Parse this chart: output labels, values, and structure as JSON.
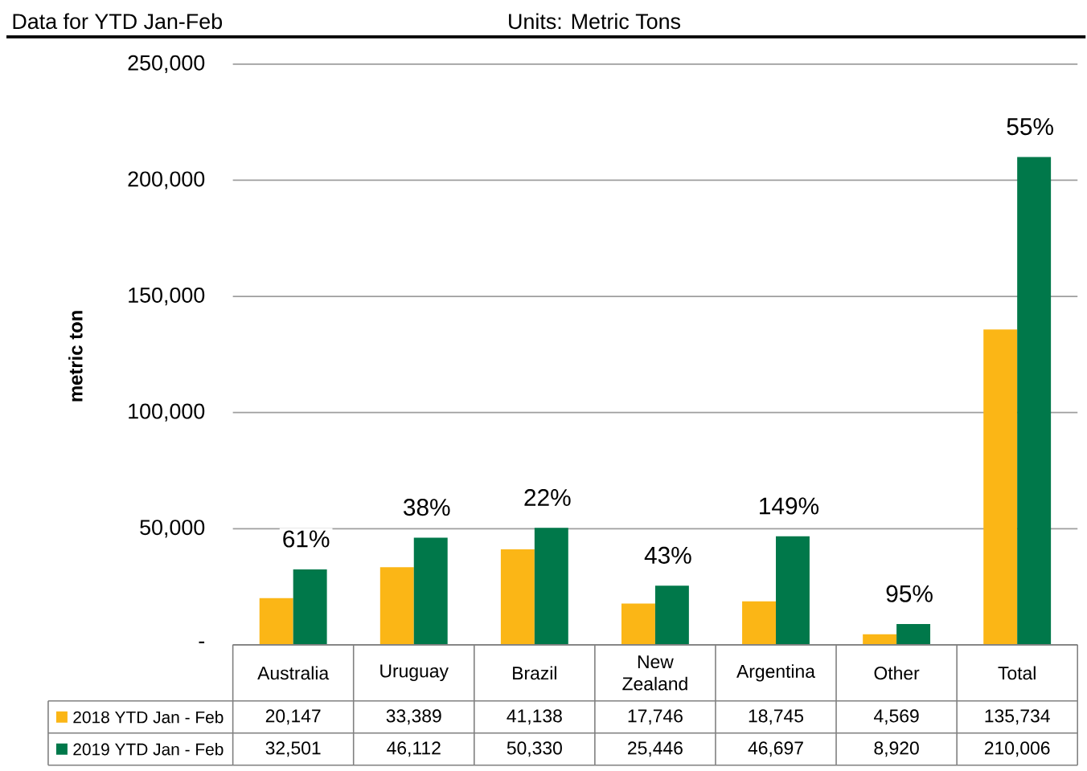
{
  "chart_data": {
    "type": "bar",
    "title": "Data for YTD Jan-Feb",
    "subtitle": "Units: Metric Tons",
    "ylabel": "metric ton",
    "categories": [
      "Australia",
      "Uruguay",
      "Brazil",
      "New Zealand",
      "Argentina",
      "Other",
      "Total"
    ],
    "series": [
      {
        "name": "2018 YTD Jan - Feb",
        "color": "#fbb616",
        "values": [
          20147,
          33389,
          41138,
          17746,
          18745,
          4569,
          135734
        ],
        "value_labels": [
          "20,147",
          "33,389",
          "41,138",
          "17,746",
          "18,745",
          "4,569",
          "135,734"
        ]
      },
      {
        "name": "2019 YTD Jan - Feb",
        "color": "#00784a",
        "values": [
          32501,
          46112,
          50330,
          25446,
          46697,
          8920,
          210006
        ],
        "value_labels": [
          "32,501",
          "46,112",
          "50,330",
          "25,446",
          "46,697",
          "8,920",
          "210,006"
        ]
      }
    ],
    "ylim": [
      0,
      250000
    ],
    "yticks": [
      {
        "value": 0,
        "label": "-"
      },
      {
        "value": 50000,
        "label": "50,000"
      },
      {
        "value": 100000,
        "label": "100,000"
      },
      {
        "value": 150000,
        "label": "150,000"
      },
      {
        "value": 200000,
        "label": "200,000"
      },
      {
        "value": 250000,
        "label": "250,000"
      }
    ],
    "grid": "y",
    "legend": "bottom",
    "annotations": [
      "61%",
      "38%",
      "22%",
      "43%",
      "149%",
      "95%",
      "55%"
    ]
  }
}
